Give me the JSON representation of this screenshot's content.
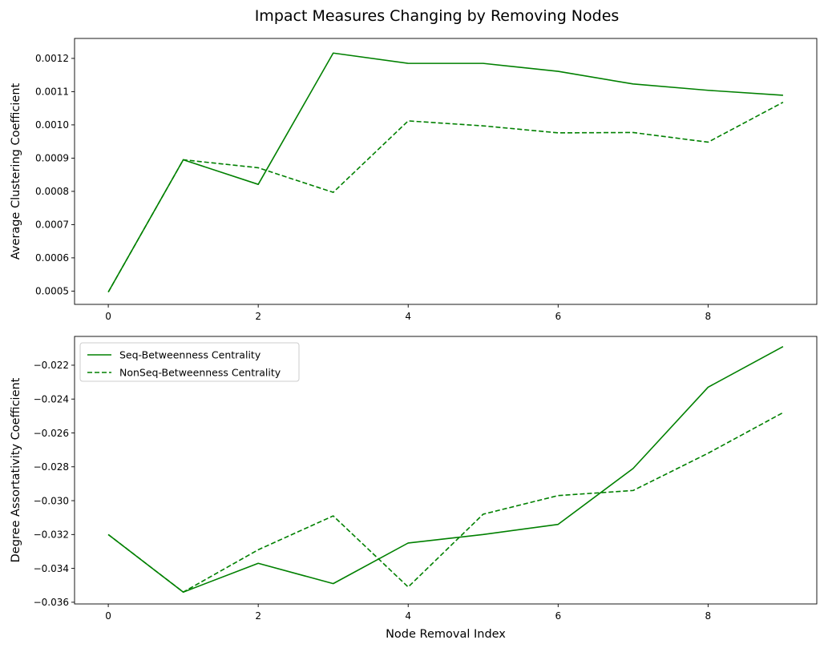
{
  "chart_data": {
    "type": "line",
    "title": "Impact Measures Changing by Removing Nodes",
    "color": "#008000",
    "subplots": [
      {
        "id": "clustering",
        "xlabel": "",
        "ylabel": "Average Clustering Coefficient",
        "xlim": [
          -0.45,
          9.45
        ],
        "ylim": [
          0.00046,
          0.00126
        ],
        "xticks": [
          0,
          2,
          4,
          6,
          8
        ],
        "xtick_labels": [
          "0",
          "2",
          "4",
          "6",
          "8"
        ],
        "yticks": [
          0.0005,
          0.0006,
          0.0007,
          0.0008,
          0.0009,
          0.001,
          0.0011,
          0.0012
        ],
        "ytick_labels": [
          "0.0005",
          "0.0006",
          "0.0007",
          "0.0008",
          "0.0009",
          "0.0010",
          "0.0011",
          "0.0012"
        ],
        "x": [
          0,
          1,
          2,
          3,
          4,
          5,
          6,
          7,
          8,
          9
        ],
        "series": [
          {
            "name": "Seq-Betweenness Centrality",
            "style": "solid",
            "values": [
              0.000497,
              0.000895,
              0.000821,
              0.001216,
              0.001185,
              0.001185,
              0.001161,
              0.001123,
              0.001104,
              0.001089
            ]
          },
          {
            "name": "NonSeq-Betweenness Centrality",
            "style": "dashed",
            "values": [
              0.000497,
              0.000895,
              0.000871,
              0.000797,
              0.001012,
              0.000997,
              0.000976,
              0.000977,
              0.000948,
              0.001068
            ]
          }
        ],
        "legend": null
      },
      {
        "id": "assortativity",
        "xlabel": "Node Removal Index",
        "ylabel": "Degree Assortativity Coefficient",
        "xlim": [
          -0.45,
          9.45
        ],
        "ylim": [
          -0.0361,
          -0.0203
        ],
        "xticks": [
          0,
          2,
          4,
          6,
          8
        ],
        "xtick_labels": [
          "0",
          "2",
          "4",
          "6",
          "8"
        ],
        "yticks": [
          -0.036,
          -0.034,
          -0.032,
          -0.03,
          -0.028,
          -0.026,
          -0.024,
          -0.022
        ],
        "ytick_labels": [
          "−0.036",
          "−0.034",
          "−0.032",
          "−0.030",
          "−0.028",
          "−0.026",
          "−0.024",
          "−0.022"
        ],
        "x": [
          0,
          1,
          2,
          3,
          4,
          5,
          6,
          7,
          8,
          9
        ],
        "series": [
          {
            "name": "Seq-Betweenness Centrality",
            "style": "solid",
            "values": [
              -0.032,
              -0.0354,
              -0.0337,
              -0.0349,
              -0.0325,
              -0.032,
              -0.0314,
              -0.0281,
              -0.0233,
              -0.0209
            ]
          },
          {
            "name": "NonSeq-Betweenness Centrality",
            "style": "dashed",
            "values": [
              -0.032,
              -0.0354,
              -0.0329,
              -0.0309,
              -0.0351,
              -0.0308,
              -0.0297,
              -0.0294,
              -0.0272,
              -0.0248
            ]
          }
        ],
        "legend": "upper-left"
      }
    ]
  }
}
